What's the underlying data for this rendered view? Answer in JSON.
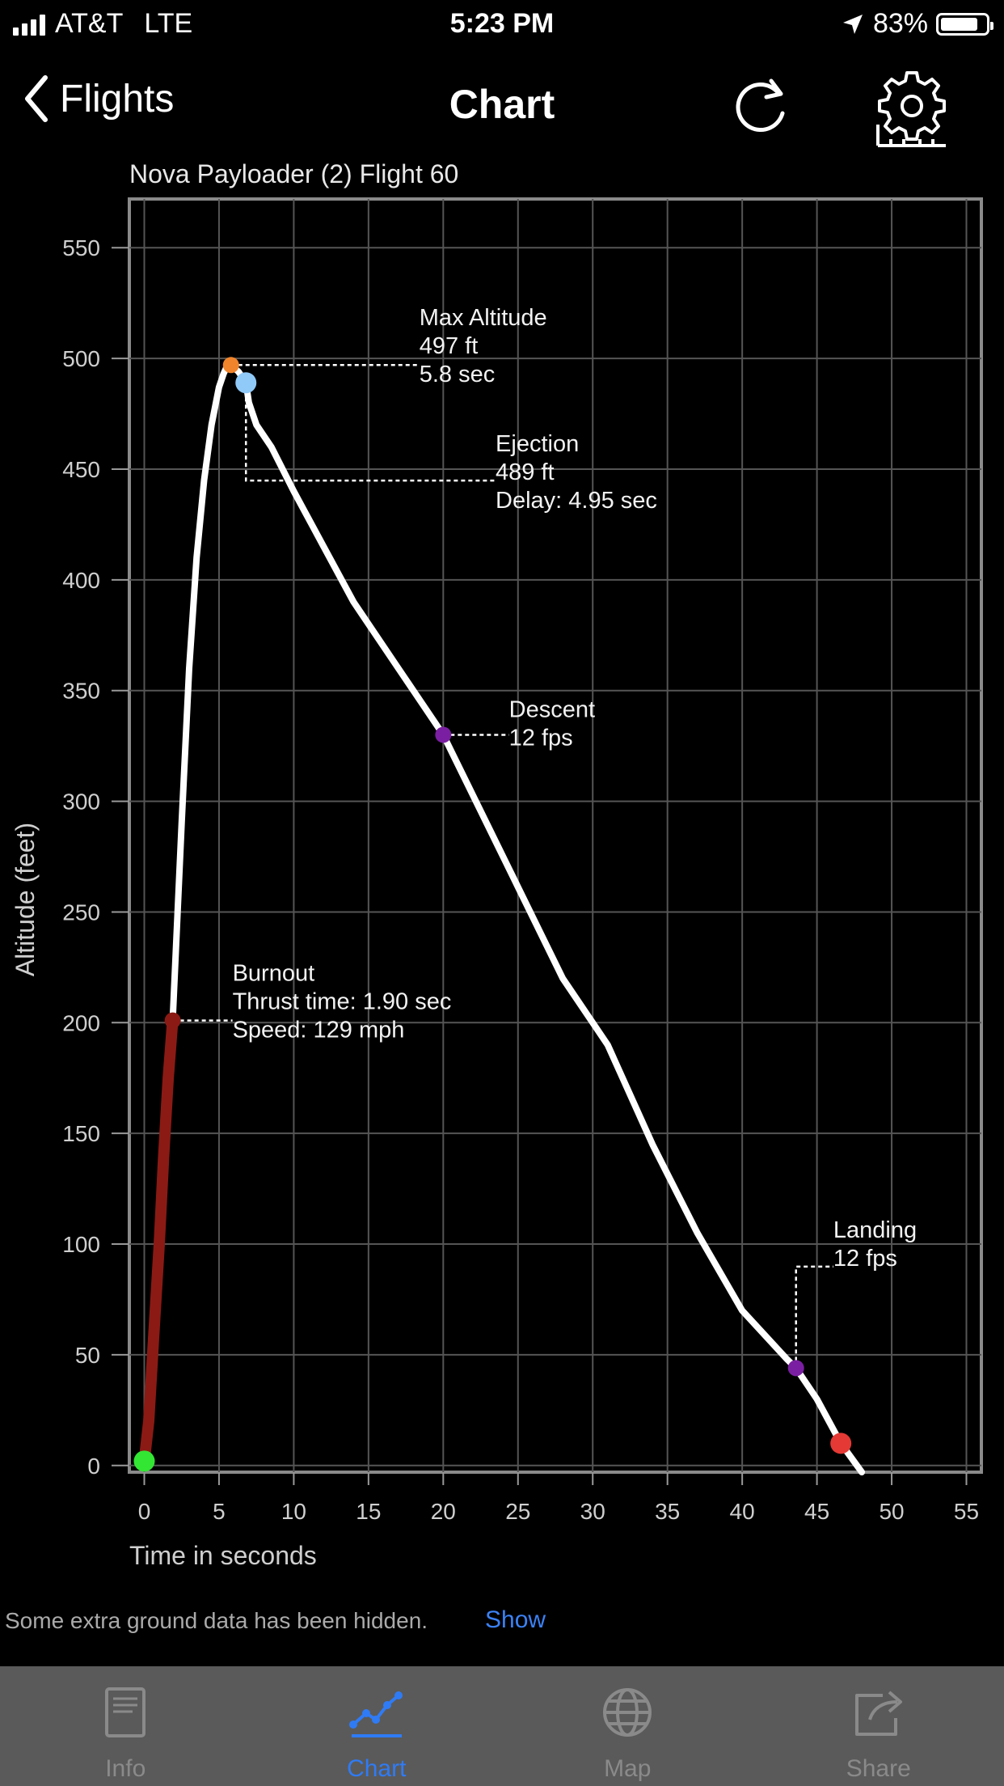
{
  "status_bar": {
    "carrier": "AT&T",
    "network": "LTE",
    "time": "5:23 PM",
    "battery": "83%"
  },
  "nav": {
    "back_label": "Flights",
    "title": "Chart",
    "refresh_icon": "refresh-icon",
    "settings_icon": "settings-gear-icon"
  },
  "chart_data": {
    "type": "line",
    "title": "Nova Payloader (2) Flight 60",
    "xlabel": "Time in seconds",
    "ylabel": "Altitude (feet)",
    "xlim": [
      -1,
      56
    ],
    "ylim": [
      -3,
      572
    ],
    "x_ticks": [
      0,
      5,
      10,
      15,
      20,
      25,
      30,
      35,
      40,
      45,
      50,
      55
    ],
    "y_ticks": [
      0,
      50,
      100,
      150,
      200,
      250,
      300,
      350,
      400,
      450,
      500,
      550
    ],
    "grid": true,
    "series": [
      {
        "segment": "thrust",
        "color": "#8b1a14",
        "x": [
          0,
          0.3,
          0.6,
          1.0,
          1.3,
          1.6,
          1.9
        ],
        "y": [
          2,
          20,
          55,
          100,
          140,
          175,
          201
        ]
      },
      {
        "segment": "coast",
        "color": "#ffffff",
        "x": [
          1.9,
          2.5,
          3.0,
          3.5,
          4.0,
          4.5,
          5.0,
          5.3,
          5.5,
          5.8
        ],
        "y": [
          201,
          290,
          360,
          410,
          445,
          470,
          487,
          493,
          496,
          497
        ]
      },
      {
        "segment": "descent",
        "color": "#ffffff",
        "x": [
          5.8,
          6.3,
          6.8,
          7.0,
          7.5,
          8.5,
          10,
          12,
          14,
          17,
          20,
          24,
          28,
          31,
          34,
          37,
          40,
          43,
          43.6,
          45,
          46.6,
          48
        ],
        "y": [
          497,
          494,
          489,
          480,
          470,
          460,
          440,
          415,
          390,
          360,
          330,
          275,
          220,
          190,
          145,
          105,
          70,
          48,
          44,
          30,
          10,
          -3
        ]
      }
    ],
    "markers": [
      {
        "name": "launch",
        "x": 0,
        "y": 2,
        "color": "#33e633"
      },
      {
        "name": "burnout",
        "x": 1.9,
        "y": 201,
        "color": "#8b1a14"
      },
      {
        "name": "max-altitude",
        "x": 5.8,
        "y": 497,
        "color": "#f0842c"
      },
      {
        "name": "ejection",
        "x": 6.8,
        "y": 489,
        "color": "#90caf9"
      },
      {
        "name": "descent",
        "x": 20,
        "y": 330,
        "color": "#7b1fa2"
      },
      {
        "name": "landing",
        "x": 43.6,
        "y": 44,
        "color": "#7b1fa2"
      },
      {
        "name": "ground",
        "x": 46.6,
        "y": 10,
        "color": "#e53935"
      }
    ],
    "annotations": [
      {
        "name": "max-altitude",
        "anchor_x": 5.8,
        "anchor_y": 497,
        "label_x": 18.4,
        "label_y": 515,
        "connector": "horizontal",
        "lines": [
          "Max Altitude",
          "497 ft",
          "5.8  sec"
        ]
      },
      {
        "name": "ejection",
        "anchor_x": 6.8,
        "anchor_y": 489,
        "label_x": 23.5,
        "label_y": 458,
        "connector": "elbow",
        "lines": [
          "Ejection",
          "489 ft",
          "Delay:  4.95 sec"
        ]
      },
      {
        "name": "descent",
        "anchor_x": 20,
        "anchor_y": 330,
        "label_x": 24.4,
        "label_y": 338,
        "connector": "horizontal",
        "lines": [
          "Descent",
          "12 fps"
        ]
      },
      {
        "name": "burnout",
        "anchor_x": 1.9,
        "anchor_y": 201,
        "label_x": 5.9,
        "label_y": 219,
        "connector": "horizontal",
        "lines": [
          "Burnout",
          "Thrust time: 1.90 sec",
          "Speed: 129 mph"
        ]
      },
      {
        "name": "landing",
        "anchor_x": 43.6,
        "anchor_y": 44,
        "label_x": 46.1,
        "label_y": 103,
        "connector": "elbow-up",
        "lines": [
          "Landing",
          "12 fps"
        ]
      }
    ]
  },
  "notice": {
    "text": "Some extra ground data has been hidden.",
    "link": "Show"
  },
  "tabs": [
    {
      "label": "Info",
      "icon": "info-document-icon",
      "active": false
    },
    {
      "label": "Chart",
      "icon": "chart-line-icon",
      "active": true
    },
    {
      "label": "Map",
      "icon": "globe-icon",
      "active": false
    },
    {
      "label": "Share",
      "icon": "share-icon",
      "active": false
    }
  ],
  "colors": {
    "accent": "#2f7bf5",
    "link": "#3b82f6",
    "tabbar_bg": "#5a5a5a",
    "grid": "#555555",
    "frame": "#8a8a8a"
  }
}
